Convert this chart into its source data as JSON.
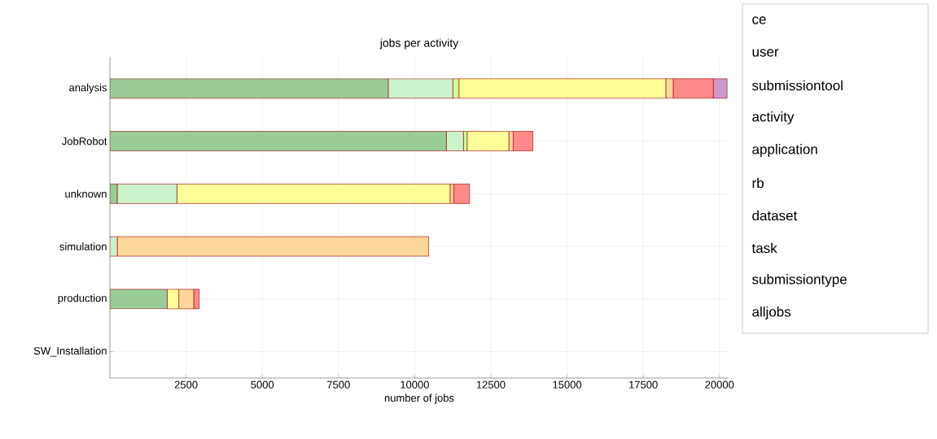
{
  "chart_data": {
    "type": "bar",
    "orientation": "horizontal",
    "stacked": true,
    "title": "jobs per activity",
    "xlabel": "number of jobs",
    "categories": [
      "analysis",
      "JobRobot",
      "unknown",
      "simulation",
      "production",
      "SW_Installation"
    ],
    "series": [
      {
        "color": "#99cc99",
        "values": [
          9130,
          11040,
          240,
          0,
          1880,
          0
        ]
      },
      {
        "color": "#ccf2cc",
        "values": [
          2120,
          560,
          1960,
          240,
          0,
          0
        ]
      },
      {
        "color": "#ccff99",
        "values": [
          200,
          120,
          0,
          0,
          0,
          0
        ]
      },
      {
        "color": "#ffff99",
        "values": [
          6790,
          1370,
          8960,
          0,
          380,
          0
        ]
      },
      {
        "color": "#ffd699",
        "values": [
          240,
          140,
          120,
          10220,
          490,
          0
        ]
      },
      {
        "color": "#ff8888",
        "values": [
          1320,
          650,
          520,
          0,
          180,
          0
        ]
      },
      {
        "color": "#cc99cc",
        "values": [
          450,
          0,
          0,
          0,
          0,
          0
        ]
      }
    ],
    "xlim": [
      0,
      20300
    ],
    "xticks": [
      2500,
      5000,
      7500,
      10000,
      12500,
      15000,
      17500,
      20000
    ],
    "grid": true,
    "annotations": [
      "ce",
      "user",
      "submissiontool",
      "activity",
      "application",
      "rb",
      "dataset",
      "task",
      "submissiontype",
      "alljobs"
    ]
  }
}
